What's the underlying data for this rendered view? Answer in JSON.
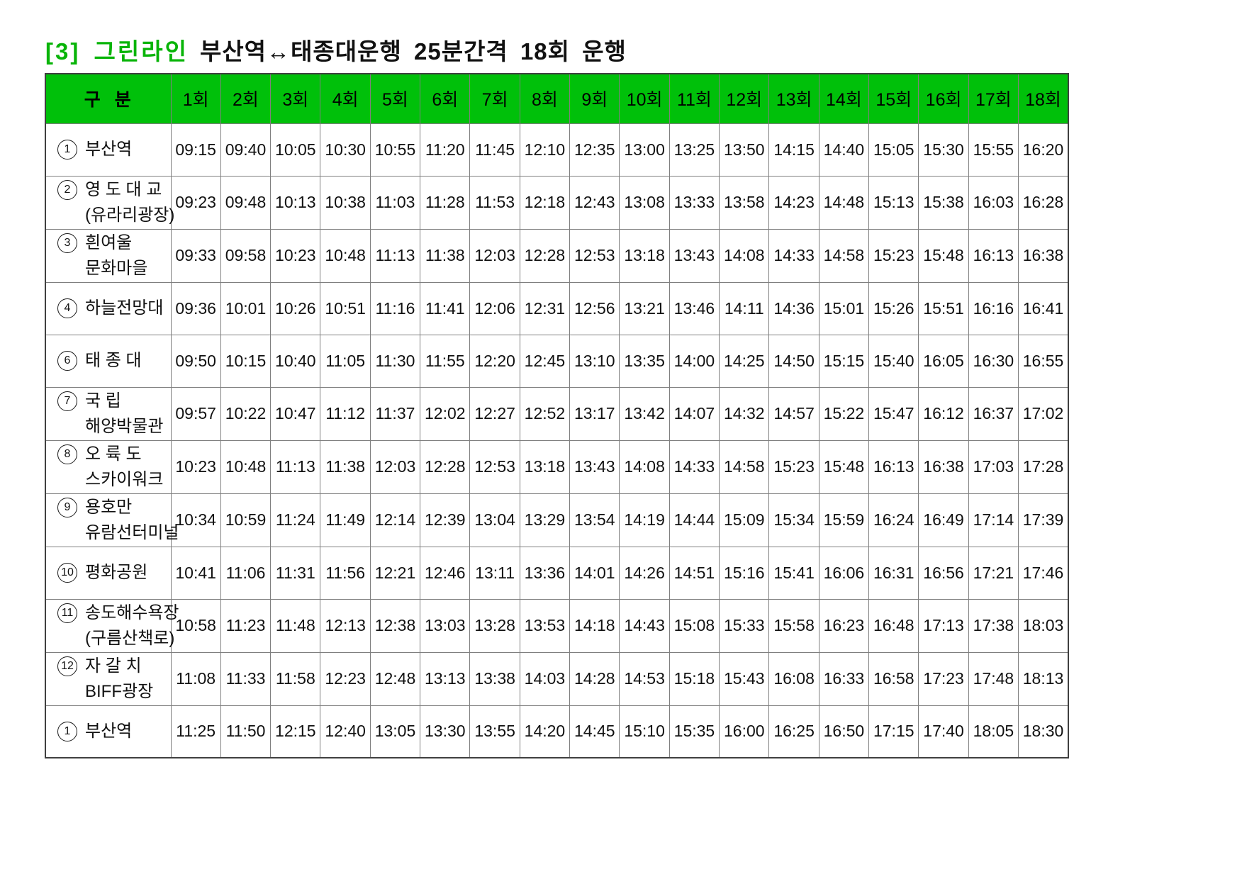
{
  "page": {
    "title": {
      "badge": "[3] 그린라인",
      "text": "부산역↔태종대운행 25분간격 18회 운행"
    },
    "colors": {
      "header_green": "#00c00a",
      "title_green": "#08b408",
      "grid_line": "#7f7f7f",
      "outer_border": "#404040"
    }
  },
  "table": {
    "corner_header": "구  분",
    "trip_headers": [
      "1회",
      "2회",
      "3회",
      "4회",
      "5회",
      "6회",
      "7회",
      "8회",
      "9회",
      "10회",
      "11회",
      "12회",
      "13회",
      "14회",
      "15회",
      "16회",
      "17회",
      "18회"
    ],
    "rows": [
      {
        "num": "1",
        "lines": [
          "부산역"
        ],
        "times": [
          "09:15",
          "09:40",
          "10:05",
          "10:30",
          "10:55",
          "11:20",
          "11:45",
          "12:10",
          "12:35",
          "13:00",
          "13:25",
          "13:50",
          "14:15",
          "14:40",
          "15:05",
          "15:30",
          "15:55",
          "16:20"
        ]
      },
      {
        "num": "2",
        "lines": [
          "영 도 대 교",
          "(유라리광장)"
        ],
        "times": [
          "09:23",
          "09:48",
          "10:13",
          "10:38",
          "11:03",
          "11:28",
          "11:53",
          "12:18",
          "12:43",
          "13:08",
          "13:33",
          "13:58",
          "14:23",
          "14:48",
          "15:13",
          "15:38",
          "16:03",
          "16:28"
        ]
      },
      {
        "num": "3",
        "lines": [
          "흰여울",
          "문화마을"
        ],
        "times": [
          "09:33",
          "09:58",
          "10:23",
          "10:48",
          "11:13",
          "11:38",
          "12:03",
          "12:28",
          "12:53",
          "13:18",
          "13:43",
          "14:08",
          "14:33",
          "14:58",
          "15:23",
          "15:48",
          "16:13",
          "16:38"
        ]
      },
      {
        "num": "4",
        "lines": [
          "하늘전망대"
        ],
        "times": [
          "09:36",
          "10:01",
          "10:26",
          "10:51",
          "11:16",
          "11:41",
          "12:06",
          "12:31",
          "12:56",
          "13:21",
          "13:46",
          "14:11",
          "14:36",
          "15:01",
          "15:26",
          "15:51",
          "16:16",
          "16:41"
        ]
      },
      {
        "num": "6",
        "lines": [
          "태 종 대"
        ],
        "times": [
          "09:50",
          "10:15",
          "10:40",
          "11:05",
          "11:30",
          "11:55",
          "12:20",
          "12:45",
          "13:10",
          "13:35",
          "14:00",
          "14:25",
          "14:50",
          "15:15",
          "15:40",
          "16:05",
          "16:30",
          "16:55"
        ]
      },
      {
        "num": "7",
        "lines": [
          "국 립",
          "해양박물관"
        ],
        "times": [
          "09:57",
          "10:22",
          "10:47",
          "11:12",
          "11:37",
          "12:02",
          "12:27",
          "12:52",
          "13:17",
          "13:42",
          "14:07",
          "14:32",
          "14:57",
          "15:22",
          "15:47",
          "16:12",
          "16:37",
          "17:02"
        ]
      },
      {
        "num": "8",
        "lines": [
          "오 륙 도",
          "스카이워크"
        ],
        "times": [
          "10:23",
          "10:48",
          "11:13",
          "11:38",
          "12:03",
          "12:28",
          "12:53",
          "13:18",
          "13:43",
          "14:08",
          "14:33",
          "14:58",
          "15:23",
          "15:48",
          "16:13",
          "16:38",
          "17:03",
          "17:28"
        ]
      },
      {
        "num": "9",
        "lines": [
          "용호만",
          "유람선터미널"
        ],
        "times": [
          "10:34",
          "10:59",
          "11:24",
          "11:49",
          "12:14",
          "12:39",
          "13:04",
          "13:29",
          "13:54",
          "14:19",
          "14:44",
          "15:09",
          "15:34",
          "15:59",
          "16:24",
          "16:49",
          "17:14",
          "17:39"
        ]
      },
      {
        "num": "10",
        "lines": [
          "평화공원"
        ],
        "times": [
          "10:41",
          "11:06",
          "11:31",
          "11:56",
          "12:21",
          "12:46",
          "13:11",
          "13:36",
          "14:01",
          "14:26",
          "14:51",
          "15:16",
          "15:41",
          "16:06",
          "16:31",
          "16:56",
          "17:21",
          "17:46"
        ]
      },
      {
        "num": "11",
        "lines": [
          "송도해수욕장",
          "(구름산책로)"
        ],
        "times": [
          "10:58",
          "11:23",
          "11:48",
          "12:13",
          "12:38",
          "13:03",
          "13:28",
          "13:53",
          "14:18",
          "14:43",
          "15:08",
          "15:33",
          "15:58",
          "16:23",
          "16:48",
          "17:13",
          "17:38",
          "18:03"
        ]
      },
      {
        "num": "12",
        "lines": [
          "자 갈 치",
          "BIFF광장"
        ],
        "times": [
          "11:08",
          "11:33",
          "11:58",
          "12:23",
          "12:48",
          "13:13",
          "13:38",
          "14:03",
          "14:28",
          "14:53",
          "15:18",
          "15:43",
          "16:08",
          "16:33",
          "16:58",
          "17:23",
          "17:48",
          "18:13"
        ]
      },
      {
        "num": "1",
        "lines": [
          "부산역"
        ],
        "times": [
          "11:25",
          "11:50",
          "12:15",
          "12:40",
          "13:05",
          "13:30",
          "13:55",
          "14:20",
          "14:45",
          "15:10",
          "15:35",
          "16:00",
          "16:25",
          "16:50",
          "17:15",
          "17:40",
          "18:05",
          "18:30"
        ]
      }
    ]
  }
}
